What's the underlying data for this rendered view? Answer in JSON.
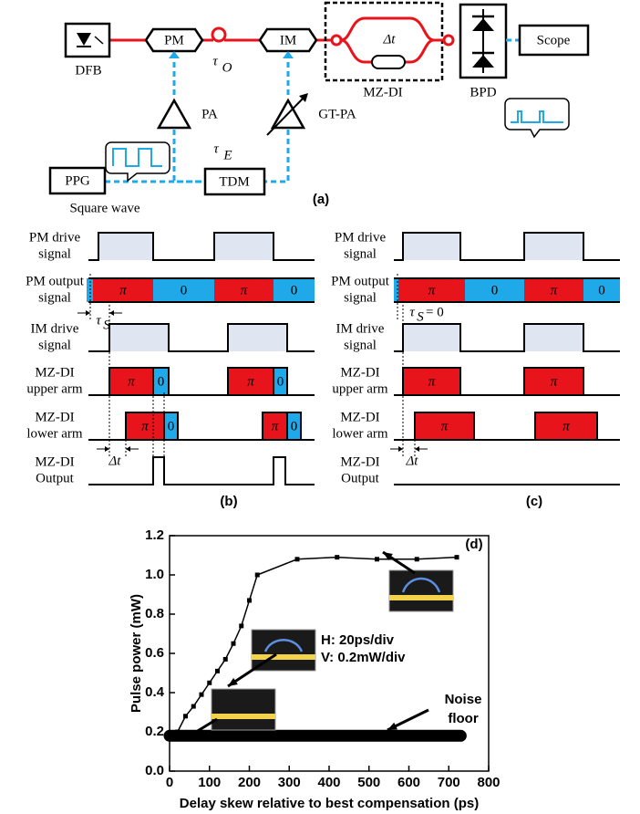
{
  "panel_a": {
    "dfb": "DFB",
    "pm": "PM",
    "tau_o": {
      "symbol": "τ",
      "sub": "O"
    },
    "im": "IM",
    "delta_t": "Δt",
    "mz_di": "MZ-DI",
    "bpd": "BPD",
    "scope": "Scope",
    "pa": "PA",
    "gt_pa": "GT-PA",
    "tau_e": {
      "symbol": "τ",
      "sub": "E"
    },
    "ppg": "PPG",
    "tdm": "TDM",
    "square_wave": "Square wave",
    "label": "(a)"
  },
  "timing": {
    "rows": [
      [
        "PM drive",
        "signal"
      ],
      [
        "PM output",
        "signal"
      ],
      [
        "IM drive",
        "signal"
      ],
      [
        "MZ-DI",
        "upper arm"
      ],
      [
        "MZ-DI",
        "lower arm"
      ],
      [
        "MZ-DI",
        "Output"
      ]
    ],
    "pi": "π",
    "zero": "0",
    "delta_t": "Δt",
    "panel_b": {
      "tau_s": {
        "symbol": "τ",
        "sub": "S"
      },
      "label": "(b)"
    },
    "panel_c": {
      "tau_s": {
        "symbol": "τ",
        "sub": "S",
        "suffix": "= 0"
      },
      "label": "(c)"
    }
  },
  "chart_data": {
    "type": "line",
    "title": "(d)",
    "y_label": "Pulse power (mW)",
    "x_label": "Delay skew relative to best compensation (ps)",
    "x": [
      20,
      40,
      60,
      80,
      100,
      120,
      140,
      160,
      180,
      200,
      220,
      320,
      420,
      520,
      620,
      720
    ],
    "series": [
      {
        "color": "#000000",
        "values": [
          0.2,
          0.28,
          0.33,
          0.39,
          0.45,
          0.51,
          0.57,
          0.65,
          0.74,
          0.87,
          1.0,
          1.08,
          1.09,
          1.08,
          1.08,
          1.09
        ]
      }
    ],
    "noise_floor": {
      "x": [
        0,
        730
      ],
      "values": [
        0.18,
        0.18
      ]
    },
    "annotations": {
      "scale_h": "H: 20ps/div",
      "scale_v": "V: 0.2mW/div",
      "noise": [
        "Noise",
        "floor"
      ]
    },
    "xlim": [
      0,
      800
    ],
    "xticks": [
      0,
      100,
      200,
      300,
      400,
      500,
      600,
      700,
      800
    ],
    "ylim": [
      0,
      1.2
    ],
    "yticks": [
      {
        "value": 0,
        "label": "0.0"
      },
      0.2,
      0.4,
      0.6,
      0.8,
      {
        "value": 1,
        "label": "1.0"
      },
      1.2
    ]
  }
}
